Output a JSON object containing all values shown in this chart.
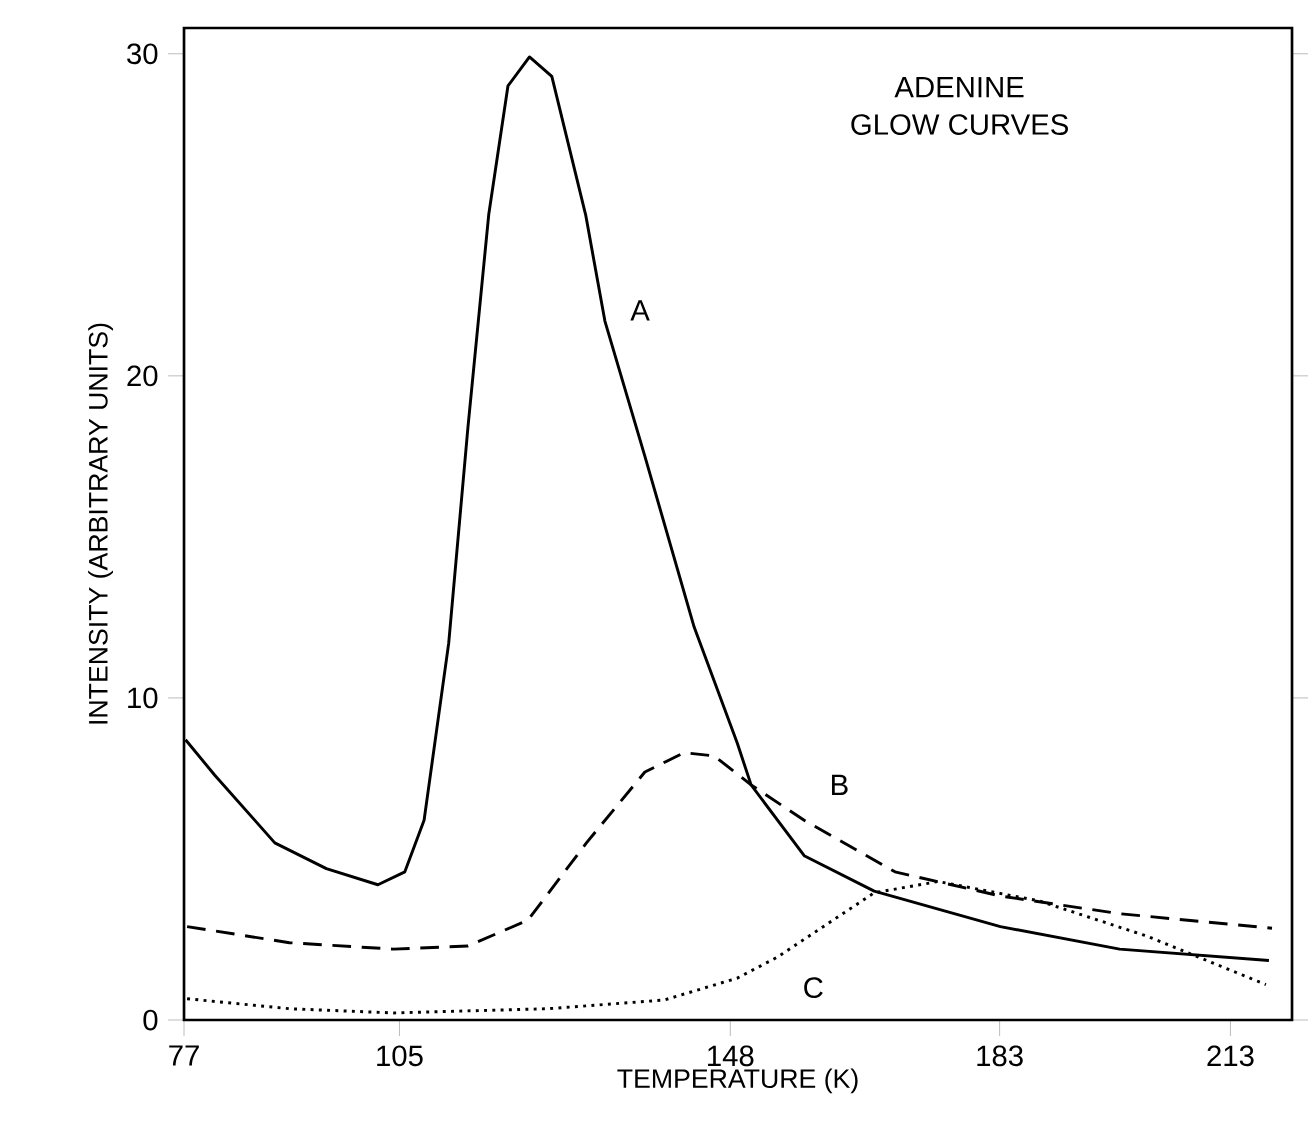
{
  "chart_data": {
    "type": "line",
    "title": "ADENINE",
    "subtitle": "GLOW CURVES",
    "xlabel": "TEMPERATURE (K)",
    "ylabel": "INTENSITY (ARBITRARY UNITS)",
    "xlim": [
      77,
      221
    ],
    "ylim": [
      0,
      30.8
    ],
    "xticks": [
      77,
      105,
      148,
      183,
      213
    ],
    "yticks": [
      0,
      10,
      20,
      30
    ],
    "grid": false,
    "legend": false,
    "marker": "none",
    "series": [
      {
        "name": "A",
        "color": "#000000",
        "line_style": "solid",
        "x": [
          77.2,
          81.0,
          88.8,
          95.5,
          102.2,
          105.7,
          108.2,
          111.4,
          113.9,
          116.6,
          119.1,
          121.9,
          124.8,
          129.2,
          131.7,
          136.9,
          143.3,
          148.9,
          150.7,
          157.6,
          166.7,
          183.1,
          198.6,
          218.0
        ],
        "values": [
          8.7,
          7.6,
          5.5,
          4.7,
          4.2,
          4.6,
          6.2,
          11.7,
          18.4,
          25.0,
          29.0,
          29.9,
          29.3,
          25.0,
          21.7,
          17.5,
          12.2,
          8.6,
          7.3,
          5.1,
          4.0,
          2.9,
          2.2,
          1.85
        ]
      },
      {
        "name": "B",
        "color": "#000000",
        "line_style": "dashed",
        "x": [
          77.4,
          90.7,
          104.2,
          113.9,
          121.7,
          129.3,
          136.9,
          142.0,
          145.9,
          150.7,
          157.6,
          169.4,
          183.1,
          198.6,
          218.4
        ],
        "values": [
          2.9,
          2.4,
          2.2,
          2.3,
          3.1,
          5.5,
          7.7,
          8.3,
          8.2,
          7.3,
          6.2,
          4.6,
          3.85,
          3.3,
          2.85
        ]
      },
      {
        "name": "C",
        "color": "#000000",
        "line_style": "dotted",
        "x": [
          77.4,
          90.7,
          104.2,
          124.3,
          139.4,
          148.9,
          154.1,
          166.7,
          175.0,
          188.1,
          202.2,
          217.6
        ],
        "values": [
          0.66,
          0.35,
          0.22,
          0.35,
          0.62,
          1.3,
          1.95,
          3.95,
          4.3,
          3.7,
          2.6,
          1.1
        ]
      }
    ]
  }
}
